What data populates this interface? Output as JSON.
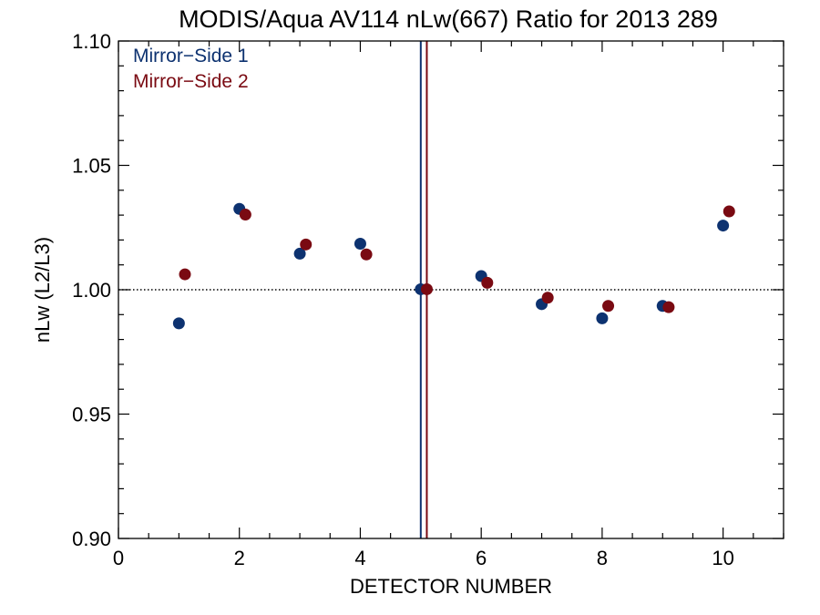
{
  "chart_data": {
    "type": "scatter",
    "title": "MODIS/Aqua AV114 nLw(667) Ratio for 2013 289",
    "xlabel": "DETECTOR NUMBER",
    "ylabel": "nLw (L2/L3)",
    "xlim": [
      0,
      11
    ],
    "ylim": [
      0.9,
      1.1
    ],
    "x_ticks": [
      "0",
      "2",
      "4",
      "6",
      "8",
      "10"
    ],
    "y_ticks": [
      "0.90",
      "0.95",
      "1.00",
      "1.05",
      "1.10"
    ],
    "reference_line_y": 1.0,
    "legend_position": "top-left",
    "series": [
      {
        "name": "Mirror−Side 1",
        "color": "#0d3270",
        "x": [
          1,
          2,
          3,
          4,
          5,
          6,
          7,
          8,
          9,
          10
        ],
        "y": [
          0.9865,
          1.0325,
          1.0145,
          1.0185,
          1.0002,
          1.0055,
          0.9942,
          0.9885,
          0.9935,
          1.0258
        ],
        "vertical_line_x": 5.0
      },
      {
        "name": "Mirror−Side 2",
        "color": "#7a0a12",
        "x": [
          1.1,
          2.1,
          3.1,
          4.1,
          5.1,
          6.1,
          7.1,
          8.1,
          9.1,
          10.1
        ],
        "y": [
          1.0062,
          1.0302,
          1.0182,
          1.0142,
          1.0002,
          1.0028,
          0.9968,
          0.9935,
          0.993,
          1.0315
        ],
        "vertical_line_x": 5.1
      }
    ]
  }
}
